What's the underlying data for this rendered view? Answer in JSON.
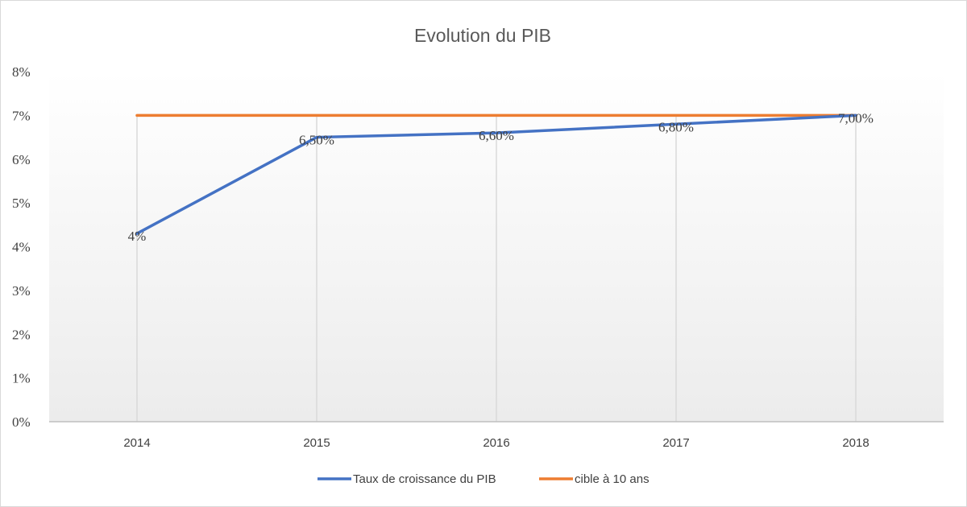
{
  "chart_data": {
    "type": "line",
    "title": "Evolution  du PIB",
    "xlabel": "",
    "ylabel": "",
    "categories": [
      "2014",
      "2015",
      "2016",
      "2017",
      "2018"
    ],
    "y_ticks": [
      "0%",
      "1%",
      "2%",
      "3%",
      "4%",
      "5%",
      "6%",
      "7%",
      "8%"
    ],
    "ylim": [
      0,
      8
    ],
    "grid": "vertical",
    "legend_position": "bottom",
    "series": [
      {
        "name": "Taux de croissance du PIB",
        "values": [
          4.3,
          6.5,
          6.6,
          6.8,
          7.0
        ],
        "data_labels": [
          "4%",
          "6,50%",
          "6,60%",
          "6,80%",
          "7,00%"
        ],
        "color": "#4472c4"
      },
      {
        "name": "cible à 10 ans",
        "values": [
          7,
          7,
          7,
          7,
          7
        ],
        "color": "#ed7d31"
      }
    ]
  }
}
